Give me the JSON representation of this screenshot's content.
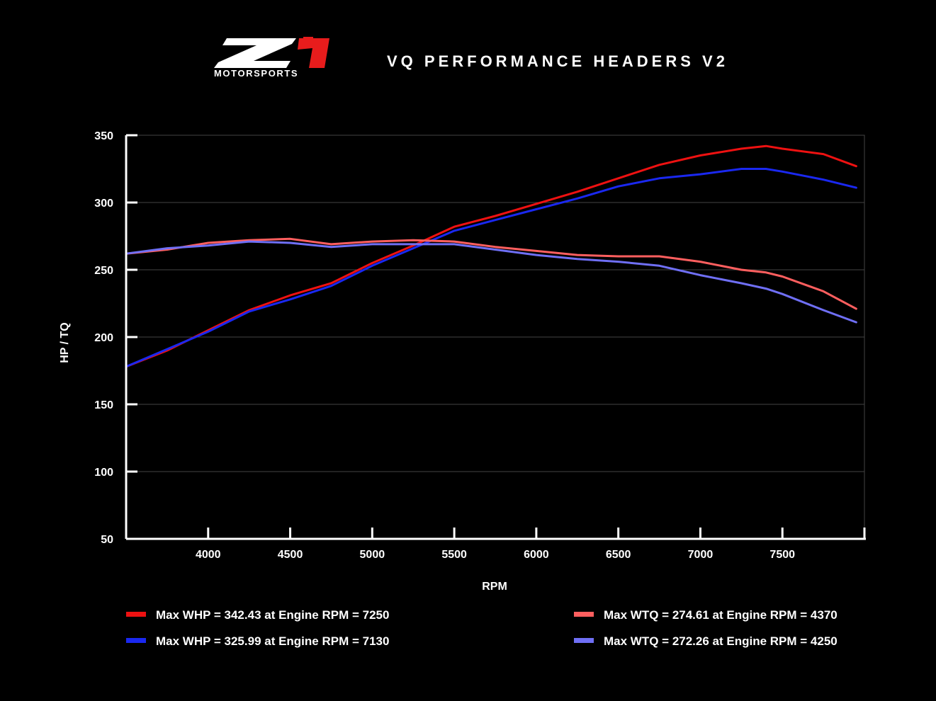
{
  "header": {
    "title": "VQ PERFORMANCE HEADERS V2",
    "logo_text": "MOTORSPORTS",
    "logo_mark": "Z1"
  },
  "colors": {
    "background": "#000000",
    "whp_red": "#ee1111",
    "whp_blue": "#1a28f0",
    "wtq_red": "#ff5f5f",
    "wtq_blue": "#6f6ff5",
    "grid": "#444444"
  },
  "legend": {
    "placement": "bottom",
    "items": [
      {
        "label": "Max WHP = 342.43 at Engine RPM = 7250",
        "color": "#ee1111"
      },
      {
        "label": "Max WHP = 325.99 at Engine RPM = 7130",
        "color": "#1a28f0"
      },
      {
        "label": "Max WTQ = 274.61 at Engine RPM = 4370",
        "color": "#ff5f5f"
      },
      {
        "label": "Max WTQ = 272.26 at Engine RPM = 4250",
        "color": "#6f6ff5"
      }
    ]
  },
  "chart_data": {
    "type": "line",
    "title": "VQ PERFORMANCE HEADERS V2",
    "xlabel": "RPM",
    "ylabel": "HP / TQ",
    "xlim": [
      3500,
      8000
    ],
    "ylim": [
      50,
      350
    ],
    "xticks": [
      4000,
      4500,
      5000,
      5500,
      6000,
      6500,
      7000,
      7500
    ],
    "yticks": [
      50,
      100,
      150,
      200,
      250,
      300,
      350
    ],
    "grid": true,
    "x": [
      3500,
      3750,
      4000,
      4250,
      4500,
      4750,
      5000,
      5250,
      5500,
      5750,
      6000,
      6250,
      6500,
      6750,
      7000,
      7250,
      7400,
      7500,
      7750,
      7950
    ],
    "series": [
      {
        "values": [
          178,
          190,
          205,
          220,
          231,
          240,
          255,
          268,
          282,
          290,
          299,
          308,
          318,
          328,
          335,
          340,
          342,
          340,
          336,
          327
        ],
        "color": "#ee1111"
      },
      {
        "values": [
          178,
          191,
          204,
          219,
          228,
          238,
          253,
          266,
          279,
          287,
          295,
          303,
          312,
          318,
          321,
          325,
          325,
          323,
          317,
          311
        ],
        "color": "#1a28f0"
      },
      {
        "values": [
          262,
          265,
          270,
          272,
          273,
          269,
          271,
          272,
          271,
          267,
          264,
          261,
          260,
          260,
          256,
          250,
          248,
          245,
          234,
          221
        ],
        "color": "#ff5f5f"
      },
      {
        "values": [
          262,
          266,
          268,
          271,
          270,
          267,
          269,
          269,
          269,
          265,
          261,
          258,
          256,
          253,
          246,
          240,
          236,
          232,
          220,
          211
        ],
        "color": "#6f6ff5"
      }
    ]
  }
}
